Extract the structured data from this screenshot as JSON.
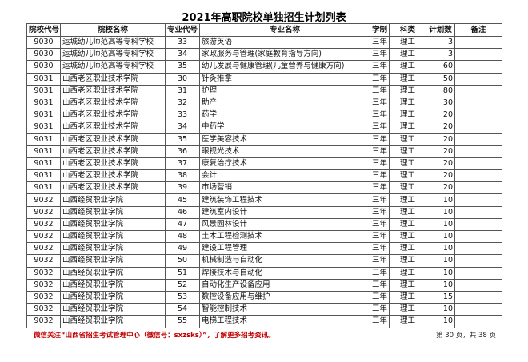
{
  "title": "2021年高职院校单独招生计划列表",
  "headers": [
    "院校代号",
    "院校名称",
    "专业代号",
    "专业名称",
    "学制",
    "科类",
    "计划数",
    "备注"
  ],
  "rows": [
    [
      "9030",
      "运城幼儿师范高等专科学校",
      "33",
      "旅游英语",
      "三年",
      "理工",
      "3",
      ""
    ],
    [
      "9030",
      "运城幼儿师范高等专科学校",
      "34",
      "家政服务与管理(家庭教育指导方向)",
      "三年",
      "理工",
      "3",
      ""
    ],
    [
      "9030",
      "运城幼儿师范高等专科学校",
      "35",
      "幼儿发展与健康管理(儿童营养与健康方向)",
      "三年",
      "理工",
      "60",
      ""
    ],
    [
      "9031",
      "山西老区职业技术学院",
      "30",
      "针灸推拿",
      "三年",
      "理工",
      "50",
      ""
    ],
    [
      "9031",
      "山西老区职业技术学院",
      "31",
      "护理",
      "三年",
      "理工",
      "80",
      ""
    ],
    [
      "9031",
      "山西老区职业技术学院",
      "32",
      "助产",
      "三年",
      "理工",
      "30",
      ""
    ],
    [
      "9031",
      "山西老区职业技术学院",
      "33",
      "药学",
      "三年",
      "理工",
      "20",
      ""
    ],
    [
      "9031",
      "山西老区职业技术学院",
      "34",
      "中药学",
      "三年",
      "理工",
      "20",
      ""
    ],
    [
      "9031",
      "山西老区职业技术学院",
      "35",
      "医学美容技术",
      "三年",
      "理工",
      "20",
      ""
    ],
    [
      "9031",
      "山西老区职业技术学院",
      "36",
      "眼视光技术",
      "三年",
      "理工",
      "20",
      ""
    ],
    [
      "9031",
      "山西老区职业技术学院",
      "37",
      "康复治疗技术",
      "三年",
      "理工",
      "20",
      ""
    ],
    [
      "9031",
      "山西老区职业技术学院",
      "38",
      "会计",
      "三年",
      "理工",
      "20",
      ""
    ],
    [
      "9031",
      "山西老区职业技术学院",
      "39",
      "市场营销",
      "三年",
      "理工",
      "20",
      ""
    ],
    [
      "9032",
      "山西经贸职业学院",
      "45",
      "建筑装饰工程技术",
      "三年",
      "理工",
      "10",
      ""
    ],
    [
      "9032",
      "山西经贸职业学院",
      "46",
      "建筑室内设计",
      "三年",
      "理工",
      "10",
      ""
    ],
    [
      "9032",
      "山西经贸职业学院",
      "47",
      "风景园林设计",
      "三年",
      "理工",
      "10",
      ""
    ],
    [
      "9032",
      "山西经贸职业学院",
      "48",
      "土木工程检测技术",
      "三年",
      "理工",
      "10",
      ""
    ],
    [
      "9032",
      "山西经贸职业学院",
      "49",
      "建设工程管理",
      "三年",
      "理工",
      "10",
      ""
    ],
    [
      "9032",
      "山西经贸职业学院",
      "50",
      "机械制造与自动化",
      "三年",
      "理工",
      "10",
      ""
    ],
    [
      "9032",
      "山西经贸职业学院",
      "51",
      "焊接技术与自动化",
      "三年",
      "理工",
      "10",
      ""
    ],
    [
      "9032",
      "山西经贸职业学院",
      "52",
      "自动化生产设备应用",
      "三年",
      "理工",
      "10",
      ""
    ],
    [
      "9032",
      "山西经贸职业学院",
      "53",
      "数控设备应用与维护",
      "三年",
      "理工",
      "15",
      ""
    ],
    [
      "9032",
      "山西经贸职业学院",
      "54",
      "智能控制技术",
      "三年",
      "理工",
      "10",
      ""
    ],
    [
      "9032",
      "山西经贸职业学院",
      "55",
      "电梯工程技术",
      "三年",
      "理工",
      "10",
      ""
    ]
  ],
  "footer": {
    "note": "微信关注“山西省招生考试管理中心（微信号：sxzsks）”，了解更多招考资讯。",
    "page": "第 30 页，共 38 页",
    "note_color": "#c00000"
  }
}
